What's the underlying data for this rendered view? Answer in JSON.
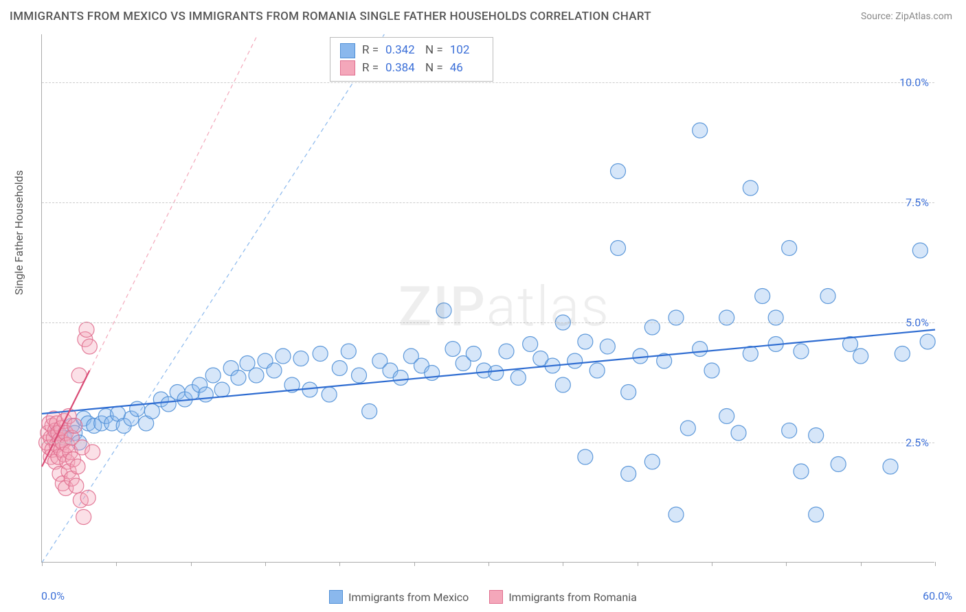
{
  "chart": {
    "type": "scatter",
    "title": "IMMIGRANTS FROM MEXICO VS IMMIGRANTS FROM ROMANIA SINGLE FATHER HOUSEHOLDS CORRELATION CHART",
    "source_label": "Source: ZipAtlas.com",
    "watermark_text": "ZIPatlas",
    "y_axis_title": "Single Father Households",
    "xlim": [
      0,
      60
    ],
    "ylim": [
      0,
      11
    ],
    "x_ticks": [
      0,
      5,
      10,
      15,
      20,
      25,
      30,
      35,
      40,
      45,
      50,
      55,
      60
    ],
    "y_grid": [
      2.5,
      5.0,
      7.5,
      10.0
    ],
    "y_tick_labels": [
      "2.5%",
      "5.0%",
      "7.5%",
      "10.0%"
    ],
    "x_min_label": "0.0%",
    "x_max_label": "60.0%",
    "background_color": "#ffffff",
    "grid_color": "#cccccc",
    "axis_color": "#aaaaaa",
    "value_color": "#3b6fd8",
    "label_color": "#555555",
    "label_fontsize": 16,
    "title_fontsize": 17,
    "marker_radius": 11,
    "series": [
      {
        "name": "Immigrants from Mexico",
        "fill_color": "#8ab8ed",
        "stroke_color": "#4f8fd6",
        "R": "0.342",
        "N": "102",
        "trend": {
          "x1": 0,
          "y1": 3.1,
          "x2": 60,
          "y2": 4.85,
          "color": "#2e6cd1",
          "width": 2.2,
          "dash": "none"
        },
        "guide": {
          "x1": 0,
          "y1": 0,
          "x2": 23,
          "y2": 11,
          "color": "#8ab8ed",
          "width": 1.2,
          "dash": "6,5"
        },
        "points": [
          [
            1.0,
            2.7
          ],
          [
            1.5,
            2.6
          ],
          [
            2.0,
            2.85
          ],
          [
            2.2,
            2.7
          ],
          [
            2.5,
            2.5
          ],
          [
            2.8,
            3.0
          ],
          [
            3.1,
            2.9
          ],
          [
            3.5,
            2.85
          ],
          [
            4.0,
            2.9
          ],
          [
            4.3,
            3.05
          ],
          [
            4.7,
            2.9
          ],
          [
            5.1,
            3.1
          ],
          [
            5.5,
            2.85
          ],
          [
            6.0,
            3.0
          ],
          [
            6.4,
            3.2
          ],
          [
            7.0,
            2.9
          ],
          [
            7.4,
            3.15
          ],
          [
            8.0,
            3.4
          ],
          [
            8.5,
            3.3
          ],
          [
            9.1,
            3.55
          ],
          [
            9.6,
            3.4
          ],
          [
            10.1,
            3.55
          ],
          [
            10.6,
            3.7
          ],
          [
            11.0,
            3.5
          ],
          [
            11.5,
            3.9
          ],
          [
            12.1,
            3.6
          ],
          [
            12.7,
            4.05
          ],
          [
            13.2,
            3.85
          ],
          [
            13.8,
            4.15
          ],
          [
            14.4,
            3.9
          ],
          [
            15.0,
            4.2
          ],
          [
            15.6,
            4.0
          ],
          [
            16.2,
            4.3
          ],
          [
            16.8,
            3.7
          ],
          [
            17.4,
            4.25
          ],
          [
            18.0,
            3.6
          ],
          [
            18.7,
            4.35
          ],
          [
            19.3,
            3.5
          ],
          [
            20.0,
            4.05
          ],
          [
            20.6,
            4.4
          ],
          [
            21.3,
            3.9
          ],
          [
            22.0,
            3.15
          ],
          [
            22.7,
            4.2
          ],
          [
            23.4,
            4.0
          ],
          [
            24.1,
            3.85
          ],
          [
            24.8,
            4.3
          ],
          [
            25.5,
            4.1
          ],
          [
            26.2,
            3.95
          ],
          [
            27.0,
            5.25
          ],
          [
            27.6,
            4.45
          ],
          [
            28.3,
            4.15
          ],
          [
            29.0,
            4.35
          ],
          [
            29.7,
            4.0
          ],
          [
            30.5,
            3.95
          ],
          [
            31.2,
            4.4
          ],
          [
            32.0,
            3.85
          ],
          [
            32.8,
            4.55
          ],
          [
            33.5,
            4.25
          ],
          [
            34.3,
            4.1
          ],
          [
            35.0,
            5.0
          ],
          [
            35.0,
            3.7
          ],
          [
            35.8,
            4.2
          ],
          [
            36.5,
            4.6
          ],
          [
            36.5,
            2.2
          ],
          [
            37.3,
            4.0
          ],
          [
            38.0,
            4.5
          ],
          [
            38.7,
            6.55
          ],
          [
            38.7,
            8.15
          ],
          [
            39.4,
            1.85
          ],
          [
            39.4,
            3.55
          ],
          [
            40.2,
            4.3
          ],
          [
            41.0,
            4.9
          ],
          [
            41.0,
            2.1
          ],
          [
            41.8,
            4.2
          ],
          [
            42.6,
            1.0
          ],
          [
            42.6,
            5.1
          ],
          [
            43.4,
            2.8
          ],
          [
            44.2,
            4.45
          ],
          [
            44.2,
            9.0
          ],
          [
            45.0,
            4.0
          ],
          [
            46.0,
            5.1
          ],
          [
            46.0,
            3.05
          ],
          [
            46.8,
            2.7
          ],
          [
            47.6,
            4.35
          ],
          [
            47.6,
            7.8
          ],
          [
            48.4,
            5.55
          ],
          [
            49.3,
            4.55
          ],
          [
            49.3,
            5.1
          ],
          [
            50.2,
            2.75
          ],
          [
            50.2,
            6.55
          ],
          [
            51.0,
            1.9
          ],
          [
            51.0,
            4.4
          ],
          [
            52.0,
            1.0
          ],
          [
            52.0,
            2.65
          ],
          [
            52.8,
            5.55
          ],
          [
            53.5,
            2.05
          ],
          [
            54.3,
            4.55
          ],
          [
            55.0,
            4.3
          ],
          [
            57.0,
            2.0
          ],
          [
            57.8,
            4.35
          ],
          [
            59.0,
            6.5
          ],
          [
            59.5,
            4.6
          ]
        ]
      },
      {
        "name": "Immigrants from Romania",
        "fill_color": "#f4a7ba",
        "stroke_color": "#e06e8e",
        "R": "0.384",
        "N": "46",
        "trend": {
          "x1": 0,
          "y1": 2.0,
          "x2": 3.2,
          "y2": 4.0,
          "color": "#d94b75",
          "width": 2.2,
          "dash": "none"
        },
        "guide": {
          "x1": 0,
          "y1": 2.0,
          "x2": 14.5,
          "y2": 11,
          "color": "#f4a7ba",
          "width": 1.2,
          "dash": "6,5"
        },
        "points": [
          [
            0.3,
            2.5
          ],
          [
            0.4,
            2.7
          ],
          [
            0.5,
            2.4
          ],
          [
            0.5,
            2.9
          ],
          [
            0.6,
            2.2
          ],
          [
            0.6,
            2.6
          ],
          [
            0.7,
            2.85
          ],
          [
            0.7,
            2.35
          ],
          [
            0.8,
            2.6
          ],
          [
            0.8,
            3.0
          ],
          [
            0.9,
            2.1
          ],
          [
            0.9,
            2.75
          ],
          [
            1.0,
            2.45
          ],
          [
            1.0,
            2.9
          ],
          [
            1.1,
            2.2
          ],
          [
            1.1,
            2.7
          ],
          [
            1.2,
            2.55
          ],
          [
            1.2,
            1.85
          ],
          [
            1.3,
            2.35
          ],
          [
            1.3,
            2.8
          ],
          [
            1.4,
            1.65
          ],
          [
            1.4,
            2.5
          ],
          [
            1.5,
            2.25
          ],
          [
            1.5,
            2.95
          ],
          [
            1.6,
            1.55
          ],
          [
            1.6,
            2.7
          ],
          [
            1.7,
            2.1
          ],
          [
            1.7,
            2.45
          ],
          [
            1.8,
            1.9
          ],
          [
            1.8,
            3.05
          ],
          [
            1.9,
            2.3
          ],
          [
            2.0,
            1.75
          ],
          [
            2.0,
            2.6
          ],
          [
            2.1,
            2.15
          ],
          [
            2.2,
            2.85
          ],
          [
            2.3,
            1.6
          ],
          [
            2.4,
            2.0
          ],
          [
            2.5,
            3.9
          ],
          [
            2.6,
            1.3
          ],
          [
            2.7,
            2.4
          ],
          [
            2.8,
            0.95
          ],
          [
            2.9,
            4.65
          ],
          [
            3.0,
            4.85
          ],
          [
            3.1,
            1.35
          ],
          [
            3.2,
            4.5
          ],
          [
            3.4,
            2.3
          ]
        ]
      }
    ],
    "legend_bottom": [
      {
        "label": "Immigrants from Mexico",
        "fill": "#8ab8ed",
        "stroke": "#4f8fd6"
      },
      {
        "label": "Immigrants from Romania",
        "fill": "#f4a7ba",
        "stroke": "#e06e8e"
      }
    ]
  }
}
